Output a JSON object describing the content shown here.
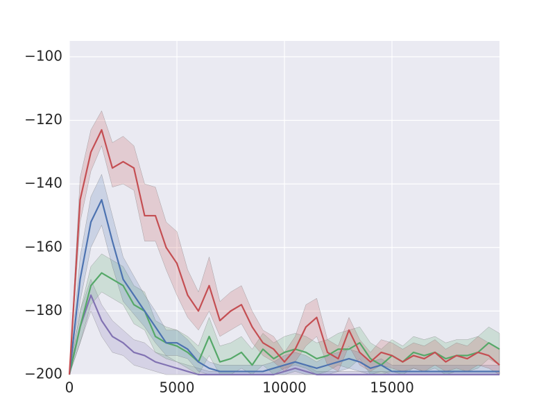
{
  "chart_data": {
    "type": "line",
    "x": [
      0,
      500,
      1000,
      1500,
      2000,
      2500,
      3000,
      3500,
      4000,
      4500,
      5000,
      5500,
      6000,
      6500,
      7000,
      7500,
      8000,
      8500,
      9000,
      9500,
      10000,
      10500,
      11000,
      11500,
      12000,
      12500,
      13000,
      13500,
      14000,
      14500,
      15000,
      15500,
      16000,
      16500,
      17000,
      17500,
      18000,
      18500,
      19000,
      19500,
      20000
    ],
    "xlim": [
      0,
      20000
    ],
    "xticks": [
      0,
      5000,
      10000,
      15000
    ],
    "ylim": [
      -200,
      -95
    ],
    "yticks": [
      {
        "value": -200,
        "label": "−200"
      },
      {
        "value": -180,
        "label": "−180"
      },
      {
        "value": -160,
        "label": "−160"
      },
      {
        "value": -140,
        "label": "−140"
      },
      {
        "value": -120,
        "label": "−120"
      },
      {
        "value": -100,
        "label": "−100"
      }
    ],
    "grid": true,
    "series": [
      {
        "color": "#c44e52",
        "values": [
          -200,
          -145,
          -130,
          -123,
          -135,
          -133,
          -135,
          -150,
          -150,
          -160,
          -165,
          -175,
          -180,
          -172,
          -183,
          -180,
          -178,
          -185,
          -190,
          -192,
          -196,
          -192,
          -185,
          -182,
          -193,
          -195,
          -186,
          -193,
          -196,
          -193,
          -194,
          -196,
          -194,
          -195,
          -193,
          -196,
          -194,
          -195,
          -193,
          -194,
          -197
        ],
        "upper": [
          -200,
          -138,
          -123,
          -117,
          -127,
          -125,
          -128,
          -140,
          -141,
          -152,
          -155,
          -167,
          -174,
          -163,
          -177,
          -174,
          -172,
          -180,
          -186,
          -188,
          -193,
          -188,
          -178,
          -176,
          -189,
          -191,
          -182,
          -189,
          -193,
          -189,
          -190,
          -192,
          -190,
          -191,
          -189,
          -192,
          -190,
          -191,
          -188,
          -190,
          -192
        ],
        "lower": [
          -200,
          -152,
          -136,
          -128,
          -141,
          -140,
          -142,
          -158,
          -158,
          -167,
          -175,
          -182,
          -186,
          -180,
          -188,
          -186,
          -184,
          -190,
          -194,
          -196,
          -199,
          -196,
          -191,
          -188,
          -197,
          -199,
          -191,
          -197,
          -199,
          -197,
          -198,
          -199,
          -198,
          -199,
          -197,
          -199,
          -198,
          -199,
          -197,
          -198,
          -200
        ]
      },
      {
        "color": "#4c72b0",
        "values": [
          -200,
          -170,
          -152,
          -145,
          -158,
          -170,
          -175,
          -180,
          -185,
          -190,
          -190,
          -192,
          -196,
          -198,
          -199,
          -199,
          -199,
          -199,
          -199,
          -198,
          -197,
          -196,
          -197,
          -198,
          -197,
          -196,
          -195,
          -196,
          -198,
          -197,
          -199,
          -199,
          -199,
          -199,
          -199,
          -199,
          -199,
          -199,
          -199,
          -199,
          -199
        ],
        "upper": [
          -200,
          -163,
          -144,
          -137,
          -150,
          -163,
          -169,
          -175,
          -180,
          -186,
          -186,
          -189,
          -193,
          -196,
          -197,
          -197,
          -197,
          -197,
          -197,
          -196,
          -194,
          -193,
          -194,
          -196,
          -194,
          -193,
          -192,
          -193,
          -196,
          -195,
          -197,
          -197,
          -197,
          -197,
          -197,
          -197,
          -197,
          -197,
          -197,
          -197,
          -197
        ],
        "lower": [
          -200,
          -177,
          -160,
          -153,
          -166,
          -177,
          -181,
          -185,
          -190,
          -194,
          -194,
          -195,
          -199,
          -200,
          -200,
          -200,
          -200,
          -200,
          -200,
          -200,
          -200,
          -199,
          -200,
          -200,
          -200,
          -199,
          -198,
          -199,
          -200,
          -199,
          -200,
          -200,
          -200,
          -200,
          -200,
          -200,
          -200,
          -200,
          -200,
          -200,
          -200
        ]
      },
      {
        "color": "#55a868",
        "values": [
          -200,
          -185,
          -172,
          -168,
          -170,
          -172,
          -178,
          -180,
          -188,
          -190,
          -191,
          -193,
          -196,
          -188,
          -196,
          -195,
          -193,
          -197,
          -192,
          -195,
          -193,
          -192,
          -193,
          -195,
          -194,
          -192,
          -192,
          -190,
          -195,
          -197,
          -194,
          -196,
          -193,
          -194,
          -193,
          -195,
          -194,
          -194,
          -193,
          -190,
          -192
        ],
        "upper": [
          -200,
          -180,
          -166,
          -162,
          -164,
          -166,
          -172,
          -174,
          -183,
          -185,
          -186,
          -188,
          -191,
          -182,
          -191,
          -190,
          -188,
          -192,
          -187,
          -190,
          -188,
          -187,
          -188,
          -190,
          -189,
          -187,
          -186,
          -185,
          -190,
          -192,
          -189,
          -191,
          -188,
          -189,
          -188,
          -190,
          -189,
          -189,
          -188,
          -185,
          -187
        ],
        "lower": [
          -200,
          -190,
          -178,
          -174,
          -176,
          -178,
          -184,
          -186,
          -193,
          -195,
          -196,
          -198,
          -200,
          -194,
          -200,
          -200,
          -198,
          -200,
          -197,
          -200,
          -198,
          -197,
          -198,
          -200,
          -199,
          -197,
          -198,
          -195,
          -200,
          -200,
          -199,
          -200,
          -198,
          -199,
          -198,
          -200,
          -199,
          -199,
          -198,
          -195,
          -197
        ]
      },
      {
        "color": "#8172b2",
        "values": [
          -200,
          -185,
          -175,
          -183,
          -188,
          -190,
          -193,
          -194,
          -196,
          -197,
          -198,
          -199,
          -200,
          -200,
          -200,
          -200,
          -200,
          -200,
          -200,
          -200,
          -199,
          -198,
          -199,
          -200,
          -200,
          -200,
          -200,
          -200,
          -200,
          -200,
          -200,
          -200,
          -200,
          -200,
          -200,
          -200,
          -200,
          -200,
          -200,
          -200,
          -200
        ],
        "upper": [
          -200,
          -180,
          -170,
          -178,
          -183,
          -186,
          -189,
          -190,
          -193,
          -194,
          -196,
          -197,
          -198,
          -199,
          -199,
          -199,
          -199,
          -199,
          -199,
          -198,
          -197,
          -196,
          -197,
          -199,
          -199,
          -199,
          -199,
          -199,
          -199,
          -199,
          -199,
          -199,
          -199,
          -199,
          -199,
          -199,
          -199,
          -199,
          -199,
          -199,
          -199
        ],
        "lower": [
          -200,
          -190,
          -180,
          -188,
          -193,
          -194,
          -197,
          -198,
          -199,
          -200,
          -200,
          -200,
          -200,
          -200,
          -200,
          -200,
          -200,
          -200,
          -200,
          -200,
          -200,
          -200,
          -200,
          -200,
          -200,
          -200,
          -200,
          -200,
          -200,
          -200,
          -200,
          -200,
          -200,
          -200,
          -200,
          -200,
          -200,
          -200,
          -200,
          -200,
          -200
        ]
      }
    ]
  }
}
